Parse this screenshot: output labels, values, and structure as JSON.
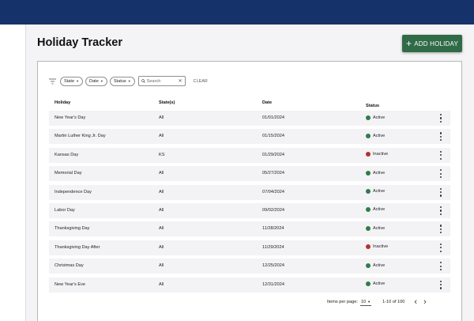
{
  "header": {
    "corner_mark": ""
  },
  "page": {
    "title": "Holiday Tracker"
  },
  "toolbar": {
    "add_label": "ADD HOLIDAY",
    "add_icon": "plus-icon"
  },
  "filters": {
    "chips": [
      "State",
      "Date",
      "Status"
    ],
    "search_placeholder": "Search",
    "clear_label": "CLEAR"
  },
  "table": {
    "columns": [
      "Holiday",
      "State(s)",
      "Date",
      "Status"
    ],
    "rows": [
      {
        "holiday": "New Year's Day",
        "states": "All",
        "date": "01/01/2024",
        "status": "Active"
      },
      {
        "holiday": "Martin Luther King Jr. Day",
        "states": "All",
        "date": "01/15/2024",
        "status": "Active"
      },
      {
        "holiday": "Kansas Day",
        "states": "KS",
        "date": "01/29/2024",
        "status": "Inactive"
      },
      {
        "holiday": "Memorial Day",
        "states": "All",
        "date": "05/27/2024",
        "status": "Active"
      },
      {
        "holiday": "Independence Day",
        "states": "All",
        "date": "07/04/2024",
        "status": "Active"
      },
      {
        "holiday": "Labor Day",
        "states": "All",
        "date": "09/02/2024",
        "status": "Active"
      },
      {
        "holiday": "Thanksgiving Day",
        "states": "All",
        "date": "11/28/2024",
        "status": "Active"
      },
      {
        "holiday": "Thanksgiving Day After",
        "states": "All",
        "date": "11/29/2024",
        "status": "Inactive"
      },
      {
        "holiday": "Christmas Day",
        "states": "All",
        "date": "12/25/2024",
        "status": "Active"
      },
      {
        "holiday": "New Year's Eve",
        "states": "All",
        "date": "12/31/2024",
        "status": "Active"
      }
    ]
  },
  "pagination": {
    "items_per_page_label": "Items per page:",
    "items_per_page_value": "10",
    "range": "1-10 of 100",
    "prev_icon": "chevron-left-icon",
    "next_icon": "chevron-right-icon"
  },
  "colors": {
    "header_bg": "#16326b",
    "accent_green": "#2f6b46",
    "status_active": "#2e7d4a",
    "status_inactive": "#b3322e"
  }
}
